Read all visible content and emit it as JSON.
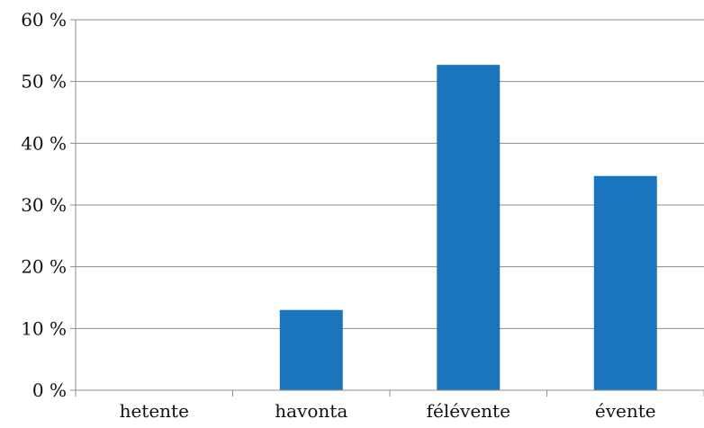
{
  "chart_data": {
    "type": "bar",
    "categories": [
      "hetente",
      "havonta",
      "félévente",
      "évente"
    ],
    "values": [
      0,
      13,
      52.7,
      34.7
    ],
    "ylim": [
      0,
      60
    ],
    "yticks": [
      "0 %",
      "10 %",
      "20 %",
      "30 %",
      "40 %",
      "50 %",
      "60 %"
    ],
    "grid": true,
    "colors": {
      "bar": "#1b75bc",
      "grid": "#8c8c8c",
      "axis": "#8c8c8c"
    }
  }
}
